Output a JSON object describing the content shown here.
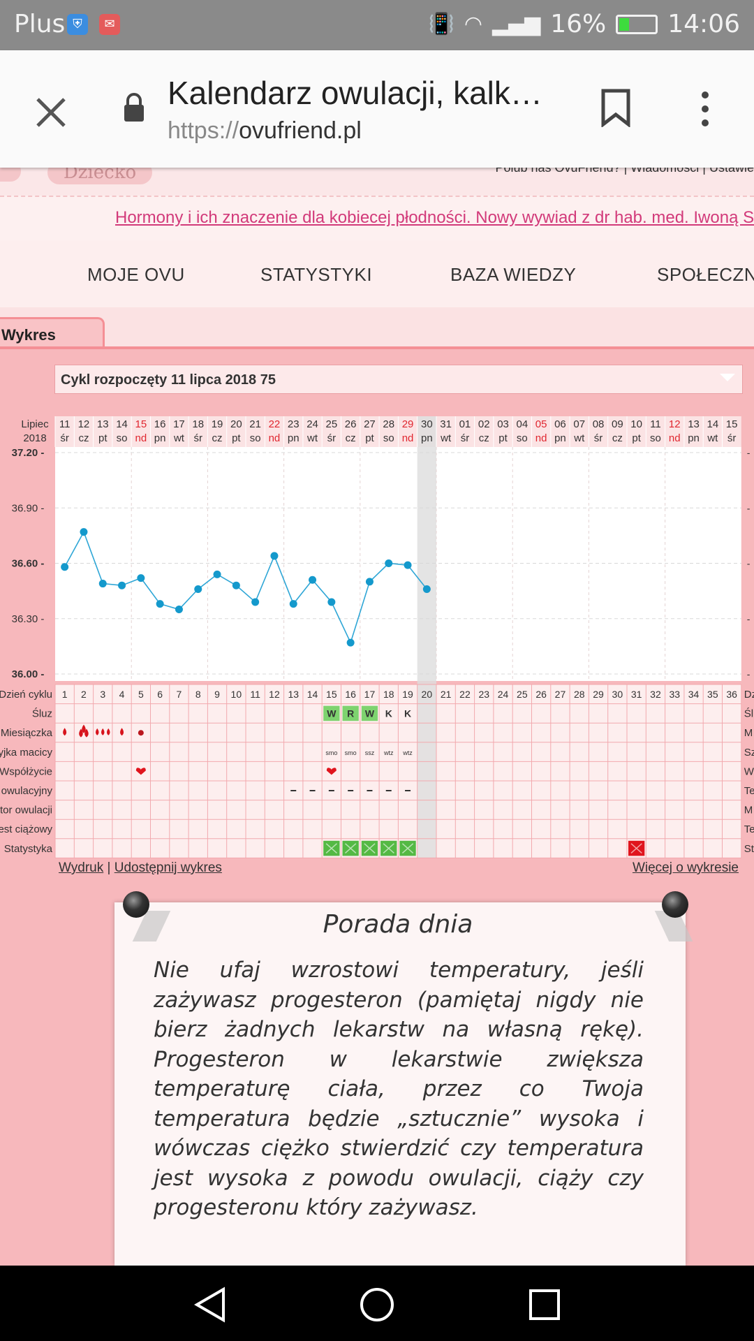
{
  "status_bar": {
    "carrier": "Plus",
    "battery": "16%",
    "time": "14:06"
  },
  "browser": {
    "title": "Kalendarz owulacji, kalk…",
    "url_scheme": "https://",
    "url_host": "ovufriend.pl"
  },
  "site_header": {
    "tab_label": "Dziecko",
    "links_text": "Polub nas OvuFriend?  |  Wiadomości  |  Ustawie"
  },
  "news": "Hormony i ich znaczenie dla kobiecej płodności. Nowy wywiad z dr hab. med. Iwoną S",
  "main_nav": [
    "MOJE OVU",
    "STATYSTYKI",
    "BAZA WIEDZY",
    "SPOŁECZN"
  ],
  "chart_tab": "Wykres",
  "cycle_select": "Cykl rozpoczęty 11 lipca 2018 75",
  "chart_data": {
    "type": "line",
    "month_label": "Lipiec",
    "year_label": "2018",
    "dates": [
      "11",
      "12",
      "13",
      "14",
      "15",
      "16",
      "17",
      "18",
      "19",
      "20",
      "21",
      "22",
      "23",
      "24",
      "25",
      "26",
      "27",
      "28",
      "29",
      "30",
      "31",
      "01",
      "02",
      "03",
      "04",
      "05",
      "06",
      "07",
      "08",
      "09",
      "10",
      "11",
      "12",
      "13",
      "14",
      "15"
    ],
    "weekdays": [
      "śr",
      "cz",
      "pt",
      "so",
      "nd",
      "pn",
      "wt",
      "śr",
      "cz",
      "pt",
      "so",
      "nd",
      "pn",
      "wt",
      "śr",
      "cz",
      "pt",
      "so",
      "nd",
      "pn",
      "wt",
      "śr",
      "cz",
      "pt",
      "so",
      "nd",
      "pn",
      "wt",
      "śr",
      "cz",
      "pt",
      "so",
      "nd",
      "pn",
      "wt",
      "śr"
    ],
    "sunday_indices": [
      4,
      11,
      18,
      25,
      32
    ],
    "today_index": 19,
    "y_ticks": [
      "37.20",
      "36.90",
      "36.60",
      "36.30",
      "36.00"
    ],
    "y_bold_ticks": [
      "37.20",
      "36.60",
      "36.00"
    ],
    "ylim": [
      36.0,
      37.2
    ],
    "temperatures": [
      36.58,
      36.77,
      36.49,
      36.48,
      36.52,
      36.38,
      36.35,
      36.46,
      36.54,
      36.48,
      36.39,
      36.64,
      36.38,
      36.51,
      36.39,
      36.17,
      36.5,
      36.6,
      36.59,
      36.46
    ],
    "row_labels": [
      "Dzień cyklu",
      "Śluz",
      "Miesiączka",
      "Szyjka macicy",
      "Współżycie",
      "Test owulacyjny",
      "Monitor owulacji",
      "Test ciążowy",
      "Statystyka"
    ],
    "row_labels_right": [
      "Dz",
      "Śl",
      "M",
      "Sz",
      "W",
      "Te",
      "M",
      "Te",
      "St"
    ],
    "cycle_days": [
      "1",
      "2",
      "3",
      "4",
      "5",
      "6",
      "7",
      "8",
      "9",
      "10",
      "11",
      "12",
      "13",
      "14",
      "15",
      "16",
      "17",
      "18",
      "19",
      "20",
      "21",
      "22",
      "23",
      "24",
      "25",
      "26",
      "27",
      "28",
      "29",
      "30",
      "31",
      "32",
      "33",
      "34",
      "35",
      "36"
    ],
    "mucus": {
      "14": "W",
      "15": "R",
      "16": "W",
      "17": "K",
      "18": "K"
    },
    "mucus_highlight": [
      14,
      15,
      16
    ],
    "period": [
      {
        "day": 0,
        "type": "drop"
      },
      {
        "day": 1,
        "type": "drops-big"
      },
      {
        "day": 2,
        "type": "drops-3"
      },
      {
        "day": 3,
        "type": "drop"
      },
      {
        "day": 4,
        "type": "dot"
      }
    ],
    "cervix": {
      "14": "SMO",
      "15": "SMO",
      "16": "SSZ",
      "17": "WTZ",
      "18": "WTZ"
    },
    "intercourse": [
      4,
      14
    ],
    "ovulation_test": [
      12,
      13,
      14,
      15,
      16,
      17,
      18
    ],
    "stats_green": [
      14,
      15,
      16,
      17,
      18
    ],
    "stats_red": [
      30
    ]
  },
  "chart_links": {
    "print": "Wydruk",
    "sep": " | ",
    "share": "Udostępnij wykres",
    "more": "Więcej o wykresie"
  },
  "tip": {
    "title": "Porada dnia",
    "body": "Nie ufaj wzrostowi temperatury, jeśli zażywasz progesteron (pamiętaj nigdy nie bierz żadnych lekarstw na własną rękę). Progesteron w lekarstwie zwiększa temperaturę ciała, przez co Twoja temperatura będzie „sztucznie” wysoka i wówczas ciężko stwierdzić czy temperatura jest wysoka z powodu owulacji, ciąży czy progesteronu który zażywasz."
  }
}
